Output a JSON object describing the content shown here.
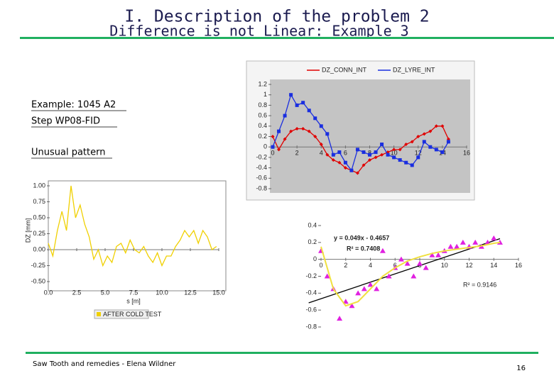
{
  "slide": {
    "title": "I. Description of the problem 2",
    "subtitle": "Difference is not Linear: Example 3",
    "notes": [
      "Example: 1045 A2",
      "Step WP08-FID",
      "Unusual pattern"
    ],
    "footer": "Saw Tooth and remedies - Elena Wildner",
    "page": "16"
  },
  "chart_data": [
    {
      "type": "line",
      "grid": false,
      "x": [
        0,
        0.5,
        1,
        1.5,
        2,
        2.5,
        3,
        3.5,
        4,
        4.5,
        5,
        5.5,
        6,
        6.5,
        7,
        7.5,
        8,
        8.5,
        9,
        9.5,
        10,
        10.5,
        11,
        11.5,
        12,
        12.5,
        13,
        13.5,
        14,
        14.5
      ],
      "series": [
        {
          "name": "DZ_CONN_INT",
          "color": "#e00000",
          "marker": "diamond",
          "values": [
            0.2,
            -0.05,
            0.15,
            0.3,
            0.35,
            0.35,
            0.3,
            0.2,
            0.05,
            -0.15,
            -0.25,
            -0.3,
            -0.4,
            -0.45,
            -0.5,
            -0.35,
            -0.25,
            -0.2,
            -0.15,
            -0.1,
            -0.05,
            -0.05,
            0.05,
            0.1,
            0.2,
            0.25,
            0.3,
            0.4,
            0.4,
            0.15
          ]
        },
        {
          "name": "DZ_LYRE_INT",
          "color": "#1a2ee0",
          "marker": "square",
          "values": [
            0.0,
            0.3,
            0.6,
            1.0,
            0.8,
            0.85,
            0.7,
            0.55,
            0.4,
            0.25,
            -0.15,
            -0.1,
            -0.3,
            -0.45,
            -0.05,
            -0.1,
            -0.15,
            -0.1,
            0.05,
            -0.15,
            -0.2,
            -0.25,
            -0.3,
            -0.35,
            -0.2,
            0.1,
            0.0,
            -0.05,
            -0.1,
            0.1
          ]
        }
      ],
      "xlim": [
        0,
        16
      ],
      "xticks": [
        0,
        2,
        4,
        6,
        8,
        10,
        12,
        14,
        16
      ],
      "ylim": [
        -0.8,
        1.2
      ],
      "yticks": [
        1.2,
        1,
        0.8,
        0.6,
        0.4,
        0.2,
        0,
        -0.2,
        -0.4,
        -0.6,
        -0.8
      ]
    },
    {
      "type": "line",
      "grid": false,
      "ylabel": "DZ [mm]",
      "xlabel": "s [m]",
      "x": [
        0,
        0.4,
        0.8,
        1.2,
        1.6,
        2.0,
        2.4,
        2.8,
        3.2,
        3.6,
        4.0,
        4.4,
        4.8,
        5.2,
        5.6,
        6.0,
        6.4,
        6.8,
        7.2,
        7.6,
        8.0,
        8.4,
        8.8,
        9.2,
        9.6,
        10.0,
        10.4,
        10.8,
        11.2,
        11.6,
        12.0,
        12.4,
        12.8,
        13.2,
        13.6,
        14.0,
        14.4,
        14.8
      ],
      "series": [
        {
          "name": "AFTER COLD TEST",
          "color": "#f0d000",
          "marker": "none",
          "values": [
            0.1,
            -0.1,
            0.3,
            0.6,
            0.3,
            1.0,
            0.5,
            0.7,
            0.4,
            0.2,
            -0.15,
            0.0,
            -0.25,
            -0.1,
            -0.2,
            0.05,
            0.1,
            -0.05,
            0.15,
            0.0,
            -0.05,
            0.05,
            -0.1,
            -0.2,
            -0.05,
            -0.25,
            -0.1,
            -0.1,
            0.05,
            0.15,
            0.3,
            0.2,
            0.3,
            0.1,
            0.3,
            0.2,
            0.0,
            0.05
          ]
        }
      ],
      "xlim": [
        0,
        15
      ],
      "xticks": [
        {
          "value": 0,
          "label": "0.0"
        },
        2.5,
        {
          "value": 5,
          "label": "5.0"
        },
        7.5,
        {
          "value": 10,
          "label": "10.0"
        },
        12.5,
        {
          "value": 15,
          "label": "15.0"
        }
      ],
      "ylim": [
        -0.5,
        1
      ],
      "yticks": [
        {
          "value": 1,
          "label": "1.00"
        },
        {
          "value": 0.75,
          "label": "0.75"
        },
        {
          "value": 0.5,
          "label": "0.50"
        },
        {
          "value": 0.25,
          "label": "0.25"
        },
        {
          "value": 0,
          "label": "0.00"
        },
        {
          "value": -0.25,
          "label": "-0.25"
        },
        {
          "value": -0.5,
          "label": "-0.50"
        }
      ]
    },
    {
      "type": "scatter",
      "grid": false,
      "annotations": [
        "y = 0.049x - 0.4657",
        "R² = 0.7408",
        "R² = 0.9146"
      ],
      "x": [
        0,
        0.5,
        1,
        1.5,
        2,
        2.5,
        3,
        3.5,
        4,
        4.5,
        5,
        5.5,
        6,
        6.5,
        7,
        7.5,
        8,
        8.5,
        9,
        9.5,
        10,
        10.5,
        11,
        11.5,
        12,
        12.5,
        13,
        13.5,
        14,
        14.5
      ],
      "series": [
        {
          "color": "#e020e0",
          "marker": "triangle",
          "line": false,
          "values": [
            0.1,
            -0.2,
            -0.35,
            -0.7,
            -0.5,
            -0.55,
            -0.4,
            -0.35,
            -0.3,
            -0.35,
            0.1,
            -0.2,
            -0.1,
            0.0,
            -0.05,
            -0.2,
            -0.05,
            -0.1,
            0.05,
            0.05,
            0.1,
            0.15,
            0.15,
            0.2,
            0.15,
            0.2,
            0.15,
            0.2,
            0.25,
            0.2
          ]
        },
        {
          "color": "#f0e040",
          "marker": "none",
          "line": true,
          "x": [
            0,
            1,
            2,
            3,
            4,
            5,
            6,
            7,
            8,
            9,
            10,
            11,
            12,
            13,
            14,
            14.5
          ],
          "values": [
            0.15,
            -0.35,
            -0.55,
            -0.5,
            -0.35,
            -0.2,
            -0.1,
            -0.02,
            0.03,
            0.07,
            0.1,
            0.12,
            0.14,
            0.16,
            0.19,
            0.2
          ]
        }
      ],
      "trend": {
        "slope": 0.049,
        "intercept": -0.4657,
        "x": [
          -1,
          14.5
        ],
        "color": "#000000"
      },
      "xlim": [
        0,
        16
      ],
      "xticks": [
        0,
        2,
        4,
        6,
        8,
        10,
        12,
        14,
        16
      ],
      "ylim": [
        -0.8,
        0.4
      ],
      "yticks": [
        0.4,
        0.2,
        0,
        -0.2,
        -0.4,
        -0.6,
        -0.8
      ]
    }
  ]
}
